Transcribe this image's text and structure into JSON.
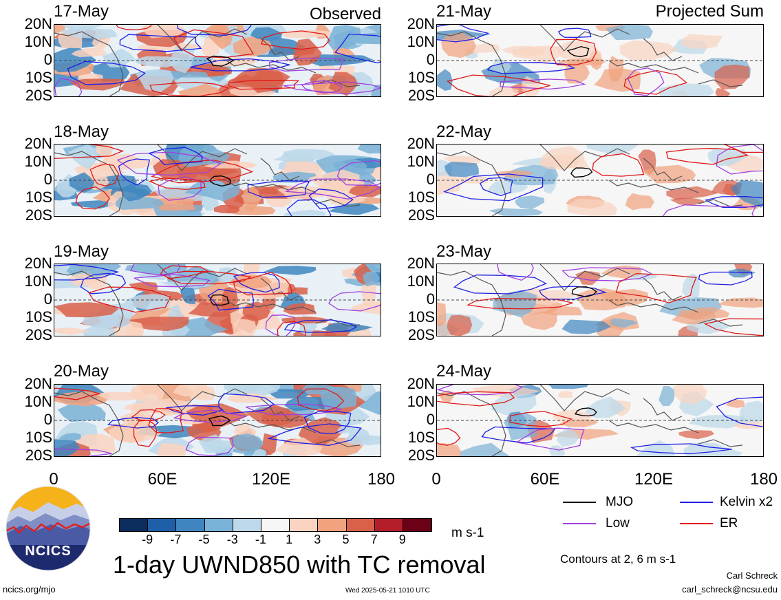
{
  "header": {
    "left_title": "Observed",
    "right_title": "Projected Sum"
  },
  "panels": [
    {
      "date": "17-May",
      "column": "observed"
    },
    {
      "date": "18-May",
      "column": "observed"
    },
    {
      "date": "19-May",
      "column": "observed"
    },
    {
      "date": "20-May",
      "column": "observed"
    },
    {
      "date": "21-May",
      "column": "projected"
    },
    {
      "date": "22-May",
      "column": "projected"
    },
    {
      "date": "23-May",
      "column": "projected"
    },
    {
      "date": "24-May",
      "column": "projected"
    }
  ],
  "axes": {
    "lat_ticks": [
      "20N",
      "10N",
      "0",
      "10S",
      "20S"
    ],
    "lon_ticks": [
      "0",
      "60E",
      "120E",
      "180"
    ]
  },
  "legend": {
    "mjo": "MJO",
    "kelvin": "Kelvin x2",
    "low": "Low",
    "er": "ER",
    "colors": {
      "mjo": "#000000",
      "kelvin": "#1f1fe6",
      "low": "#a040e0",
      "er": "#e01818"
    },
    "contours_note": "Contours at 2, 6 m s-1"
  },
  "colorbar": {
    "labels": [
      "-9",
      "-7",
      "-5",
      "-3",
      "-1",
      "1",
      "3",
      "5",
      "7",
      "9"
    ],
    "colors": [
      "#0b2c5c",
      "#1f5fa8",
      "#3f86c0",
      "#7ab1d6",
      "#bcd8ea",
      "#f6f6f6",
      "#fad4c0",
      "#f1a27e",
      "#d9604a",
      "#b41e2a",
      "#6b0017"
    ],
    "units": "m s-1"
  },
  "title": "1-day UWND850 with TC removal",
  "footer": {
    "logo_text": "NCICS",
    "url": "ncics.org/mjo",
    "timestamp": "Wed 2025-05-21 1010 UTC",
    "author": "Carl Schreck",
    "email": "carl_schreck@ncsu.edu"
  }
}
